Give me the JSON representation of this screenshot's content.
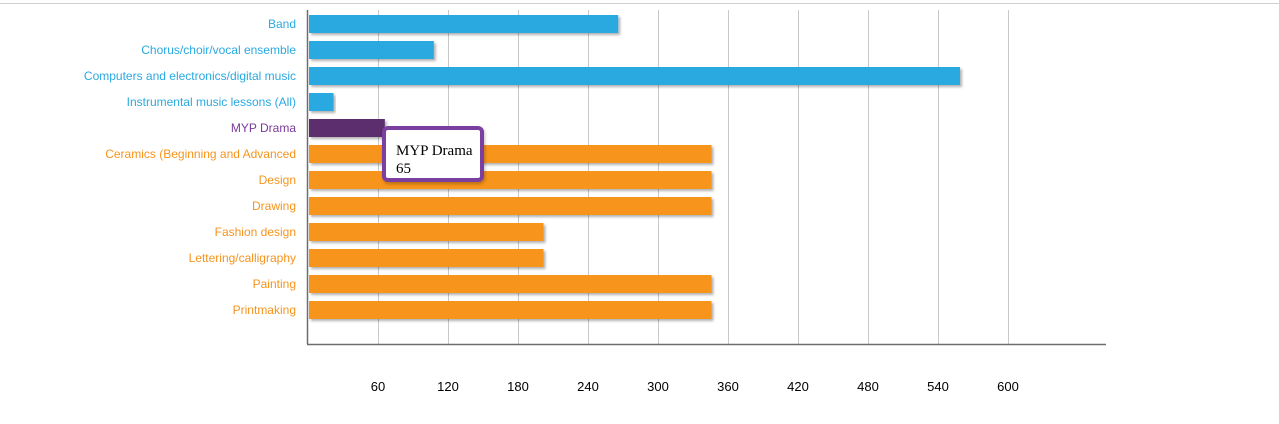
{
  "chart_data": {
    "type": "bar",
    "orientation": "horizontal",
    "categories": [
      "Band",
      "Chorus/choir/vocal ensemble",
      "Computers and electronics/digital music",
      "Instrumental music lessons (All)",
      "MYP Drama",
      "Ceramics (Beginning and Advanced",
      "Design",
      "Drawing",
      "Fashion design",
      "Lettering/calligraphy",
      "Painting",
      "Printmaking"
    ],
    "values": [
      265,
      107,
      558,
      21,
      65,
      345,
      345,
      345,
      201,
      201,
      345,
      345
    ],
    "bar_colors": [
      "#29a9e1",
      "#29a9e1",
      "#29a9e1",
      "#29a9e1",
      "#5b2d6e",
      "#f7941d",
      "#f7941d",
      "#f7941d",
      "#f7941d",
      "#f7941d",
      "#f7941d",
      "#f7941d"
    ],
    "label_colors": [
      "#29a9e1",
      "#29a9e1",
      "#29a9e1",
      "#29a9e1",
      "#7a3a9a",
      "#f7941d",
      "#f7941d",
      "#f7941d",
      "#f7941d",
      "#f7941d",
      "#f7941d",
      "#f7941d"
    ],
    "xticks": [
      60,
      120,
      180,
      240,
      300,
      360,
      420,
      480,
      540,
      600
    ],
    "xlim": [
      0,
      684
    ],
    "grid": true,
    "title": "",
    "xlabel": "",
    "ylabel": "",
    "tooltip": {
      "label": "MYP Drama",
      "value": "65",
      "border_color": "#7b3fa0"
    }
  }
}
